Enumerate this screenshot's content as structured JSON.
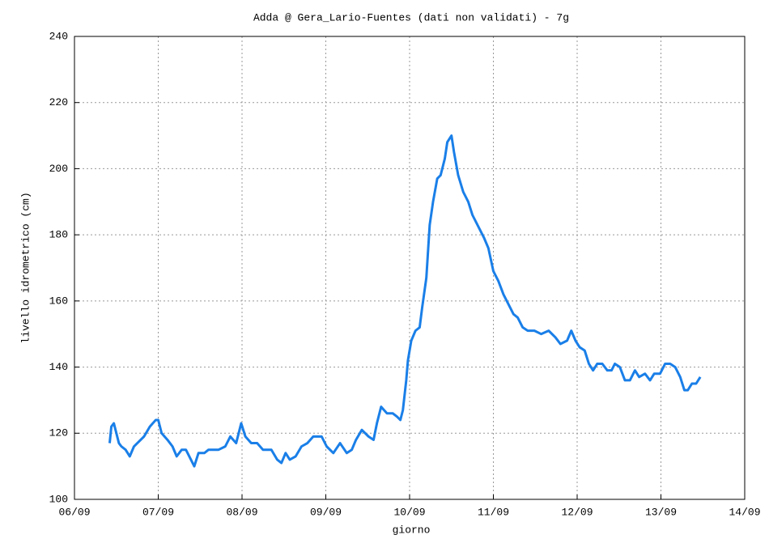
{
  "chart_data": {
    "type": "line",
    "title": "Adda @ Gera_Lario-Fuentes (dati non validati) - 7g",
    "x_label": "giorno",
    "y_label": "livello idrometrico (cm)",
    "color": "#1a7fe8",
    "grid": true,
    "xlim": [
      6,
      14
    ],
    "xticks": [
      {
        "value": 6,
        "label": "06/09"
      },
      {
        "value": 7,
        "label": "07/09"
      },
      {
        "value": 8,
        "label": "08/09"
      },
      {
        "value": 9,
        "label": "09/09"
      },
      {
        "value": 10,
        "label": "10/09"
      },
      {
        "value": 11,
        "label": "11/09"
      },
      {
        "value": 12,
        "label": "12/09"
      },
      {
        "value": 13,
        "label": "13/09"
      },
      {
        "value": 14,
        "label": "14/09"
      }
    ],
    "ylim": [
      100,
      240
    ],
    "yticks": [
      100,
      120,
      140,
      160,
      180,
      200,
      220,
      240
    ],
    "x": [
      6.42,
      6.44,
      6.47,
      6.5,
      6.53,
      6.56,
      6.61,
      6.66,
      6.71,
      6.75,
      6.83,
      6.9,
      6.97,
      7.0,
      7.04,
      7.11,
      7.17,
      7.22,
      7.28,
      7.33,
      7.39,
      7.43,
      7.48,
      7.55,
      7.6,
      7.72,
      7.8,
      7.86,
      7.93,
      7.99,
      8.04,
      8.11,
      8.18,
      8.25,
      8.35,
      8.42,
      8.47,
      8.52,
      8.57,
      8.64,
      8.71,
      8.78,
      8.85,
      8.95,
      9.01,
      9.09,
      9.17,
      9.25,
      9.31,
      9.36,
      9.43,
      9.51,
      9.57,
      9.61,
      9.66,
      9.73,
      9.8,
      9.85,
      9.89,
      9.92,
      9.96,
      9.98,
      10.02,
      10.07,
      10.12,
      10.15,
      10.2,
      10.24,
      10.28,
      10.33,
      10.37,
      10.42,
      10.45,
      10.5,
      10.53,
      10.58,
      10.64,
      10.7,
      10.75,
      10.83,
      10.89,
      10.94,
      11.0,
      11.06,
      11.12,
      11.18,
      11.24,
      11.29,
      11.35,
      11.41,
      11.49,
      11.57,
      11.66,
      11.74,
      11.8,
      11.88,
      11.93,
      11.98,
      12.03,
      12.09,
      12.14,
      12.19,
      12.24,
      12.3,
      12.36,
      12.41,
      12.45,
      12.51,
      12.57,
      12.63,
      12.69,
      12.74,
      12.81,
      12.87,
      12.92,
      12.99,
      13.05,
      13.11,
      13.17,
      13.23,
      13.28,
      13.32,
      13.37,
      13.42,
      13.47
    ],
    "values": [
      117,
      122,
      123,
      120,
      117,
      116,
      115,
      113,
      116,
      117,
      119,
      122,
      124,
      124,
      120,
      118,
      116,
      113,
      115,
      115,
      112,
      110,
      114,
      114,
      115,
      115,
      116,
      119,
      117,
      123,
      119,
      117,
      117,
      115,
      115,
      112,
      111,
      114,
      112,
      113,
      116,
      117,
      119,
      119,
      116,
      114,
      117,
      114,
      115,
      118,
      121,
      119,
      118,
      123,
      128,
      126,
      126,
      125,
      124,
      127,
      136,
      142,
      148,
      151,
      152,
      158,
      167,
      183,
      190,
      197,
      198,
      203,
      208,
      210,
      205,
      198,
      193,
      190,
      186,
      182,
      179,
      176,
      169,
      166,
      162,
      159,
      156,
      155,
      152,
      151,
      151,
      150,
      151,
      149,
      147,
      148,
      151,
      148,
      146,
      145,
      141,
      139,
      141,
      141,
      139,
      139,
      141,
      140,
      136,
      136,
      139,
      137,
      138,
      136,
      138,
      138,
      141,
      141,
      140,
      137,
      133,
      133,
      135,
      135,
      137
    ]
  }
}
